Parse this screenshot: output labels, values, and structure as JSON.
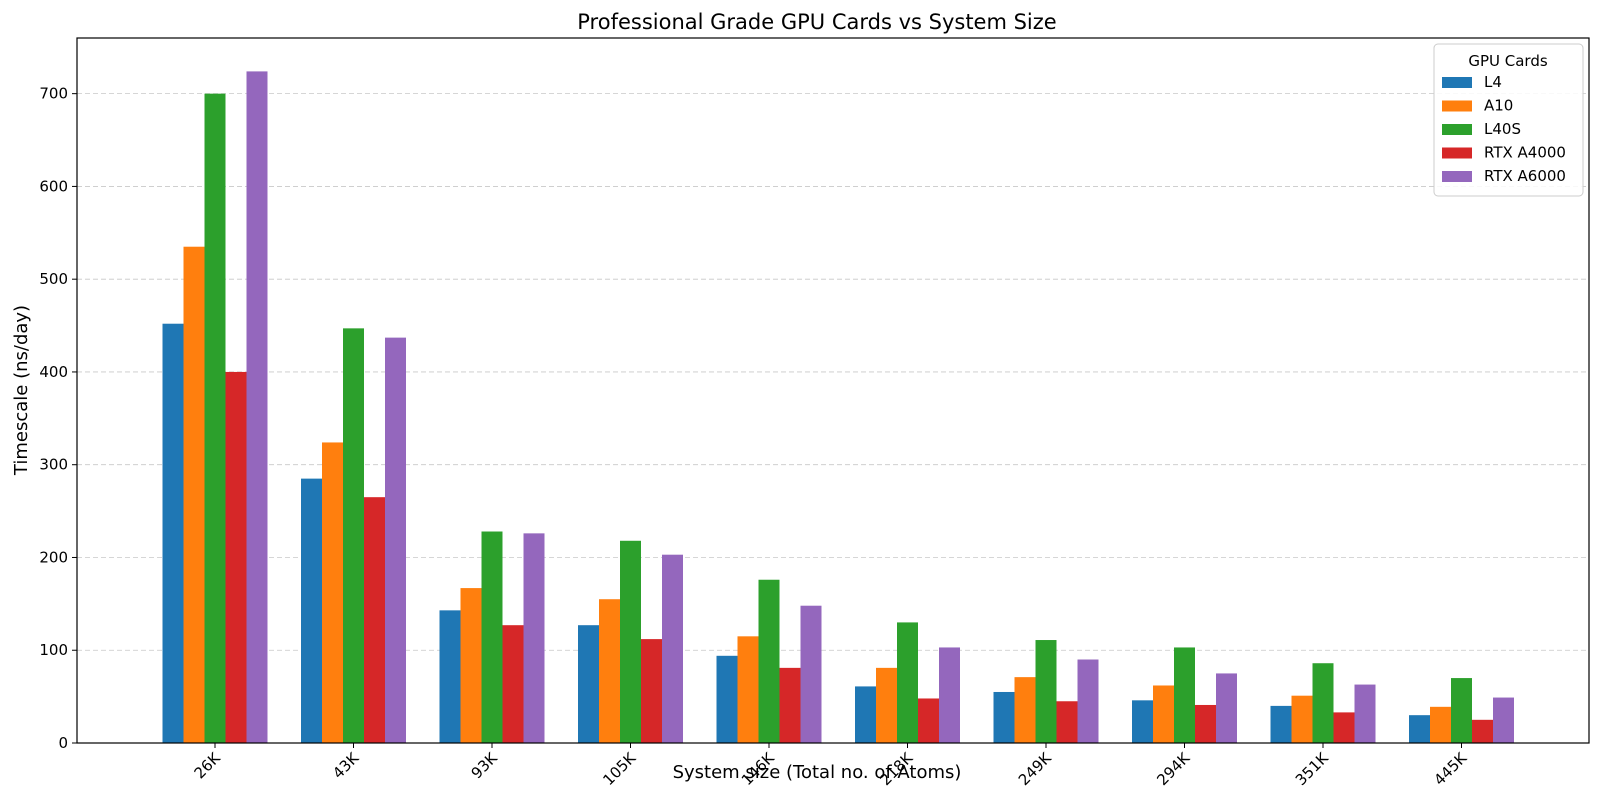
{
  "chart_data": {
    "type": "bar",
    "title": "Professional Grade GPU Cards vs System Size",
    "xlabel": "System size (Total no. of Atoms)",
    "ylabel": "Timescale (ns/day)",
    "ylim": [
      0,
      760
    ],
    "yticks": [
      0,
      100,
      200,
      300,
      400,
      500,
      600,
      700
    ],
    "grid": "horizontal dashed",
    "legend_title": "GPU Cards",
    "legend_position": "top-right",
    "categories": [
      "26K",
      "43K",
      "93K",
      "105K",
      "146K",
      "218K",
      "249K",
      "294K",
      "351K",
      "445K"
    ],
    "series": [
      {
        "name": "L4",
        "color": "#1f77b4",
        "values": [
          452,
          285,
          143,
          127,
          94,
          61,
          55,
          46,
          40,
          30
        ]
      },
      {
        "name": "A10",
        "color": "#ff7f0e",
        "values": [
          535,
          324,
          167,
          155,
          115,
          81,
          71,
          62,
          51,
          39
        ]
      },
      {
        "name": "L40S",
        "color": "#2ca02c",
        "values": [
          700,
          447,
          228,
          218,
          176,
          130,
          111,
          103,
          86,
          70
        ]
      },
      {
        "name": "RTX A4000",
        "color": "#d62728",
        "values": [
          400,
          265,
          127,
          112,
          81,
          48,
          45,
          41,
          33,
          25
        ]
      },
      {
        "name": "RTX A6000",
        "color": "#9467bd",
        "values": [
          724,
          437,
          226,
          203,
          148,
          103,
          90,
          75,
          63,
          49
        ]
      }
    ]
  }
}
